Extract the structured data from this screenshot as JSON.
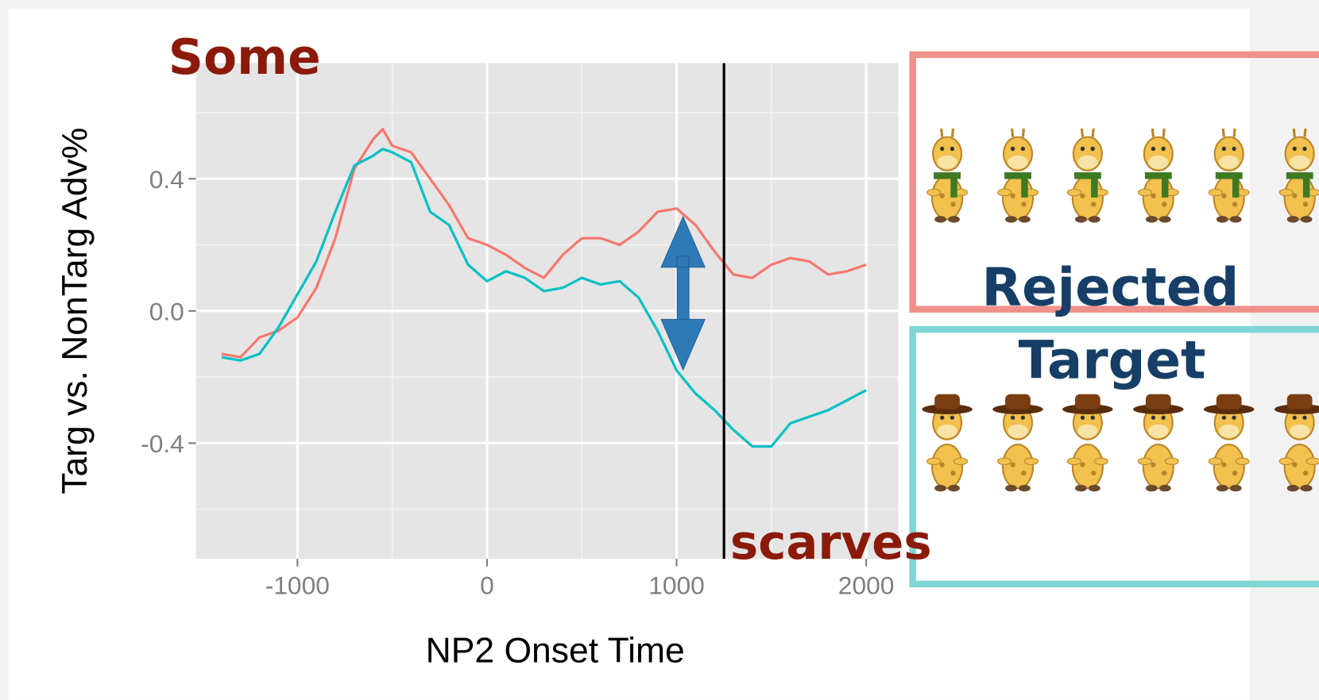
{
  "chart_data": {
    "type": "line",
    "x": [
      -1400,
      -1300,
      -1200,
      -1100,
      -1000,
      -900,
      -800,
      -700,
      -600,
      -550,
      -500,
      -400,
      -300,
      -200,
      -100,
      0,
      100,
      200,
      300,
      400,
      500,
      600,
      700,
      800,
      900,
      1000,
      1100,
      1200,
      1300,
      1400,
      1500,
      1600,
      1700,
      1800,
      1900,
      2000
    ],
    "series": [
      {
        "color": "#F8766D",
        "values": [
          -0.13,
          -0.14,
          -0.08,
          -0.06,
          -0.02,
          0.07,
          0.22,
          0.43,
          0.52,
          0.55,
          0.5,
          0.48,
          0.4,
          0.32,
          0.22,
          0.2,
          0.17,
          0.13,
          0.1,
          0.17,
          0.22,
          0.22,
          0.2,
          0.24,
          0.3,
          0.31,
          0.26,
          0.18,
          0.11,
          0.1,
          0.14,
          0.16,
          0.15,
          0.11,
          0.12,
          0.14
        ]
      },
      {
        "color": "#00BFC4",
        "values": [
          -0.14,
          -0.15,
          -0.13,
          -0.05,
          0.05,
          0.15,
          0.3,
          0.44,
          0.47,
          0.49,
          0.48,
          0.45,
          0.3,
          0.26,
          0.14,
          0.09,
          0.12,
          0.1,
          0.06,
          0.07,
          0.1,
          0.08,
          0.09,
          0.04,
          -0.06,
          -0.18,
          -0.25,
          -0.3,
          -0.36,
          -0.41,
          -0.41,
          -0.34,
          -0.32,
          -0.3,
          -0.27,
          -0.24
        ]
      }
    ],
    "xlim": [
      -1535,
      2170
    ],
    "ylim": [
      -0.75,
      0.75
    ],
    "xticks": [
      -1000,
      0,
      1000,
      2000
    ],
    "yticks": [
      -0.4,
      {
        "value": 0,
        "label": "0.0"
      },
      0.4
    ],
    "x_minor_grid": [
      -500,
      500,
      1500
    ],
    "y_minor_grid": [
      -0.6,
      -0.2,
      0.2,
      0.6
    ],
    "grid": true,
    "vline": 1250,
    "xlabel": "NP2 Onset Time",
    "ylabel": "Targ vs. NonTarg Adv%",
    "annotations": [
      "Some",
      "scarves",
      "Rejected",
      "Target"
    ]
  }
}
